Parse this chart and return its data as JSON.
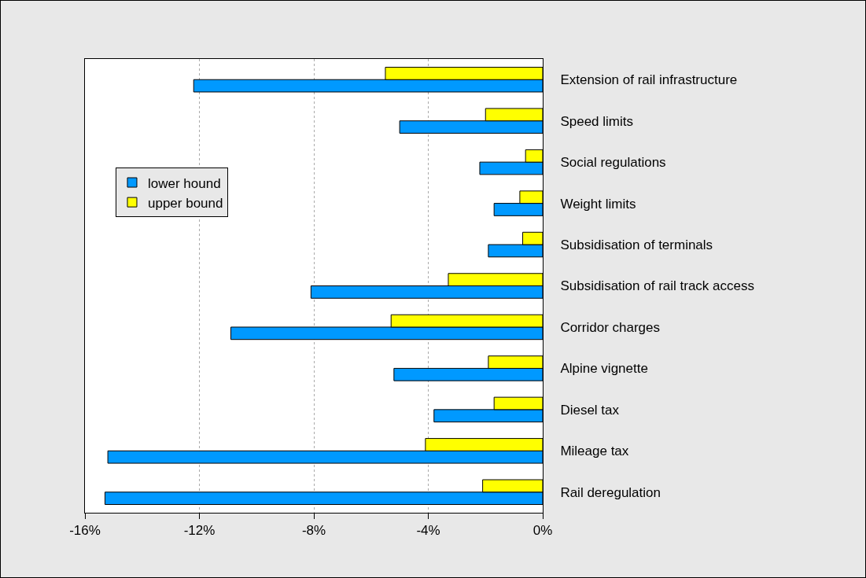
{
  "chart_data": {
    "type": "bar",
    "orientation": "horizontal",
    "categories": [
      "Extension of rail infrastructure",
      "Speed limits",
      "Social regulations",
      "Weight limits",
      "Subsidisation of terminals",
      "Subsidisation of rail track access",
      "Corridor charges",
      "Alpine vignette",
      "Diesel tax",
      "Mileage tax",
      "Rail deregulation"
    ],
    "series": [
      {
        "name": "lower hound",
        "color": "#0099ff",
        "values": [
          -12.2,
          -5.0,
          -2.2,
          -1.7,
          -1.9,
          -8.1,
          -10.9,
          -5.2,
          -3.8,
          -15.2,
          -15.3
        ]
      },
      {
        "name": "upper bound",
        "color": "#ffff00",
        "values": [
          -5.5,
          -2.0,
          -0.6,
          -0.8,
          -0.7,
          -3.3,
          -5.3,
          -1.9,
          -1.7,
          -4.1,
          -2.1
        ]
      }
    ],
    "xlim": [
      -16,
      0
    ],
    "xticks": [
      {
        "value": -16,
        "label": "-16%"
      },
      {
        "value": -12,
        "label": "-12%"
      },
      {
        "value": -8,
        "label": "-8%"
      },
      {
        "value": -4,
        "label": "-4%"
      },
      {
        "value": 0,
        "label": "0%"
      }
    ],
    "grid": "x",
    "legend": "left"
  }
}
